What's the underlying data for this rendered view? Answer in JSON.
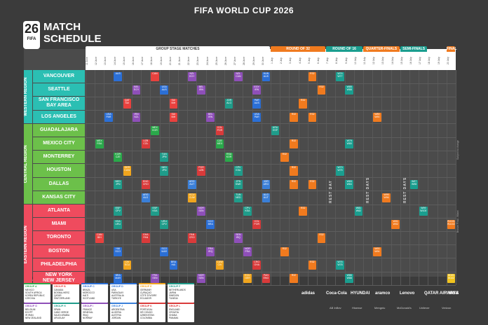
{
  "title": "FIFA WORLD CUP 2026",
  "logo": {
    "big": "26",
    "small": "FIFA"
  },
  "match_title": [
    "MATCH",
    "SCHEDULE"
  ],
  "stages": [
    {
      "label": "GROUP STAGE MATCHES",
      "color": "#ffffff"
    },
    {
      "label": "ROUND OF 32",
      "color": "#f07a1e"
    },
    {
      "label": "ROUND OF 16",
      "color": "#1a9e8f"
    },
    {
      "label": "QUARTER-FINALS",
      "color": "#f07a1e"
    },
    {
      "label": "SEMI-FINALS",
      "color": "#1a9e8f"
    },
    {
      "label": "FINAL",
      "color": "#f07a1e"
    }
  ],
  "regions": [
    {
      "label": "WESTERN REGION",
      "color": "#2bbfb3"
    },
    {
      "label": "CENTRAL REGION",
      "color": "#6cc04a"
    },
    {
      "label": "EASTERN REGION",
      "color": "#ef4b5e"
    }
  ],
  "cities": [
    {
      "name": "VANCOUVER",
      "region": 0
    },
    {
      "name": "SEATTLE",
      "region": 0
    },
    {
      "name": "SAN FRANCISCO\nBAY AREA",
      "region": 0
    },
    {
      "name": "LOS ANGELES",
      "region": 0
    },
    {
      "name": "GUADALAJARA",
      "region": 1
    },
    {
      "name": "MEXICO CITY",
      "region": 1
    },
    {
      "name": "MONTERREY",
      "region": 1
    },
    {
      "name": "HOUSTON",
      "region": 1
    },
    {
      "name": "DALLAS",
      "region": 1
    },
    {
      "name": "KANSAS CITY",
      "region": 1
    },
    {
      "name": "ATLANTA",
      "region": 2
    },
    {
      "name": "MIAMI",
      "region": 2
    },
    {
      "name": "TORONTO",
      "region": 2
    },
    {
      "name": "BOSTON",
      "region": 2
    },
    {
      "name": "PHILADELPHIA",
      "region": 2
    },
    {
      "name": "NEW YORK\nNEW JERSEY",
      "region": 2
    }
  ],
  "rest_days": [
    "REST DAY",
    "REST DAYS",
    "REST DAYS"
  ],
  "matches": [
    {
      "row": 0,
      "col": 3,
      "t": "AUS",
      "c": "#2b6fd6"
    },
    {
      "row": 0,
      "col": 7,
      "t": "CAN",
      "c": "#e8413e"
    },
    {
      "row": 0,
      "col": 11,
      "t": "NZL\nEGY",
      "c": "#8e4fb8"
    },
    {
      "row": 0,
      "col": 16,
      "t": "NZL\nCAN",
      "c": "#8e4fb8"
    },
    {
      "row": 0,
      "col": 19,
      "t": "HUN\nAUS",
      "c": "#2b6fd6"
    },
    {
      "row": 1,
      "col": 5,
      "t": "BEL\nEGY",
      "c": "#8e4fb8"
    },
    {
      "row": 1,
      "col": 8,
      "t": "USA\nAUS",
      "c": "#2b6fd6"
    },
    {
      "row": 1,
      "col": 12,
      "t": "BEL\nIRN",
      "c": "#8e4fb8"
    },
    {
      "row": 1,
      "col": 18,
      "t": "EGY\nIRN",
      "c": "#8e4fb8"
    },
    {
      "row": 2,
      "col": 4,
      "t": "QAT\nSUI",
      "c": "#e8413e"
    },
    {
      "row": 2,
      "col": 9,
      "t": "SUI\nBIH",
      "c": "#e8413e"
    },
    {
      "row": 2,
      "col": 15,
      "t": "JOR\nALG",
      "c": "#1f9c8a"
    },
    {
      "row": 2,
      "col": 18,
      "t": "PAR\nAUS",
      "c": "#2b6fd6"
    },
    {
      "row": 3,
      "col": 2,
      "t": "USA\nPAR",
      "c": "#2b6fd6"
    },
    {
      "row": 3,
      "col": 5,
      "t": "IRN\nNZL",
      "c": "#8e4fb8"
    },
    {
      "row": 3,
      "col": 9,
      "t": "SUI\nBIH",
      "c": "#e8413e"
    },
    {
      "row": 3,
      "col": 13,
      "t": "BEL\nIRN",
      "c": "#8e4fb8"
    },
    {
      "row": 3,
      "col": 18,
      "t": "USA\nPAR",
      "c": "#2b6fd6"
    },
    {
      "row": 4,
      "col": 7,
      "t": "MEX\nKOR",
      "c": "#2aa84a"
    },
    {
      "row": 4,
      "col": 14,
      "t": "COL\nPOR",
      "c": "#d93a3a"
    },
    {
      "row": 4,
      "col": 20,
      "t": "URU\nESP",
      "c": "#1f9c8a"
    },
    {
      "row": 5,
      "col": 1,
      "t": "MEX\nRSA",
      "c": "#2aa84a"
    },
    {
      "row": 5,
      "col": 6,
      "t": "UZB\nCOL",
      "c": "#d93a3a"
    },
    {
      "row": 5,
      "col": 14,
      "t": "CZE\nMEX",
      "c": "#2aa84a"
    },
    {
      "row": 6,
      "col": 3,
      "t": "KOR\nCZE",
      "c": "#2aa84a"
    },
    {
      "row": 6,
      "col": 8,
      "t": "TUN\nJPN",
      "c": "#1f9c8a"
    },
    {
      "row": 6,
      "col": 15,
      "t": "RSA\nKOR",
      "c": "#2aa84a"
    },
    {
      "row": 7,
      "col": 4,
      "t": "GER\nCUW",
      "c": "#f0a51e"
    },
    {
      "row": 7,
      "col": 8,
      "t": "NED\nJPN",
      "c": "#1f9c8a"
    },
    {
      "row": 7,
      "col": 12,
      "t": "POR\nUZB",
      "c": "#d93a3a"
    },
    {
      "row": 7,
      "col": 16,
      "t": "CPV\nKSA",
      "c": "#1f9c8a"
    },
    {
      "row": 8,
      "col": 3,
      "t": "NED\nJPN",
      "c": "#1f9c8a"
    },
    {
      "row": 8,
      "col": 6,
      "t": "ENG\nCRO",
      "c": "#d93a3a"
    },
    {
      "row": 8,
      "col": 11,
      "t": "ARG\nAUT",
      "c": "#3a7fd8"
    },
    {
      "row": 8,
      "col": 16,
      "t": "JPN\nSWE",
      "c": "#1f9c8a"
    },
    {
      "row": 8,
      "col": 19,
      "t": "JOR\nARG",
      "c": "#3a7fd8"
    },
    {
      "row": 9,
      "col": 6,
      "t": "ARG\nALG",
      "c": "#3a7fd8"
    },
    {
      "row": 9,
      "col": 11,
      "t": "ECU\nCUW",
      "c": "#f0a51e"
    },
    {
      "row": 9,
      "col": 16,
      "t": "TUN\nNED",
      "c": "#1f9c8a"
    },
    {
      "row": 9,
      "col": 19,
      "t": "ALG\nAUT",
      "c": "#3a7fd8"
    },
    {
      "row": 10,
      "col": 3,
      "t": "ESP\nCPV",
      "c": "#1f9c8a"
    },
    {
      "row": 10,
      "col": 7,
      "t": "ESP\nKSA",
      "c": "#1f9c8a"
    },
    {
      "row": 10,
      "col": 12,
      "t": "NOR\nSEN",
      "c": "#8e4fb8"
    },
    {
      "row": 10,
      "col": 17,
      "t": "CPV\nKSA",
      "c": "#1f9c8a"
    },
    {
      "row": 11,
      "col": 3,
      "t": "KSA\nURU",
      "c": "#1f9c8a"
    },
    {
      "row": 11,
      "col": 8,
      "t": "URU\nCPV",
      "c": "#1f9c8a"
    },
    {
      "row": 11,
      "col": 13,
      "t": "SCO\nBRA",
      "c": "#2b6fd6"
    },
    {
      "row": 11,
      "col": 18,
      "t": "COL\nPOR",
      "c": "#d93a3a"
    },
    {
      "row": 12,
      "col": 1,
      "t": "CAN\nBIH",
      "c": "#e8413e"
    },
    {
      "row": 12,
      "col": 6,
      "t": "GHA\nPAN",
      "c": "#d93a3a"
    },
    {
      "row": 12,
      "col": 11,
      "t": "PAN\nCRO",
      "c": "#d93a3a"
    },
    {
      "row": 12,
      "col": 16,
      "t": "SEN\nIRQ",
      "c": "#8e4fb8"
    },
    {
      "row": 13,
      "col": 3,
      "t": "HAI\nSCO",
      "c": "#2b6fd6"
    },
    {
      "row": 13,
      "col": 8,
      "t": "SCO\nMAR",
      "c": "#2b6fd6"
    },
    {
      "row": 13,
      "col": 13,
      "t": "FRA\nIRQ",
      "c": "#8e4fb8"
    },
    {
      "row": 13,
      "col": 17,
      "t": "NOR\nFRA",
      "c": "#8e4fb8"
    },
    {
      "row": 14,
      "col": 4,
      "t": "CIV\nECU",
      "c": "#f0a51e"
    },
    {
      "row": 14,
      "col": 9,
      "t": "BRA\nHAI",
      "c": "#2b6fd6"
    },
    {
      "row": 14,
      "col": 14,
      "t": "CUW\nCIV",
      "c": "#f0a51e"
    },
    {
      "row": 14,
      "col": 18,
      "t": "CRO\nGHA",
      "c": "#d93a3a"
    },
    {
      "row": 15,
      "col": 3,
      "t": "BRA\nMAR",
      "c": "#2b6fd6"
    },
    {
      "row": 15,
      "col": 7,
      "t": "FRA\nSEN",
      "c": "#8e4fb8"
    },
    {
      "row": 15,
      "col": 12,
      "t": "NOR\nSEN",
      "c": "#8e4fb8"
    },
    {
      "row": 15,
      "col": 17,
      "t": "ECU\nGER",
      "c": "#f0a51e"
    },
    {
      "row": 15,
      "col": 19,
      "t": "PAN\nENG",
      "c": "#d93a3a"
    },
    {
      "row": 0,
      "col": 24,
      "t": "R32",
      "c": "#f07a1e"
    },
    {
      "row": 1,
      "col": 25,
      "t": "R32",
      "c": "#f07a1e"
    },
    {
      "row": 2,
      "col": 23,
      "t": "R32",
      "c": "#f07a1e"
    },
    {
      "row": 3,
      "col": 22,
      "t": "R32",
      "c": "#f07a1e"
    },
    {
      "row": 3,
      "col": 24,
      "t": "R32",
      "c": "#f07a1e"
    },
    {
      "row": 5,
      "col": 22,
      "t": "R32",
      "c": "#f07a1e"
    },
    {
      "row": 6,
      "col": 21,
      "t": "R32",
      "c": "#f07a1e"
    },
    {
      "row": 7,
      "col": 22,
      "t": "R32",
      "c": "#f07a1e"
    },
    {
      "row": 8,
      "col": 22,
      "t": "R32",
      "c": "#f07a1e"
    },
    {
      "row": 8,
      "col": 24,
      "t": "R32",
      "c": "#f07a1e"
    },
    {
      "row": 10,
      "col": 23,
      "t": "R32",
      "c": "#f07a1e"
    },
    {
      "row": 12,
      "col": 25,
      "t": "R32",
      "c": "#f07a1e"
    },
    {
      "row": 13,
      "col": 21,
      "t": "R32",
      "c": "#f07a1e"
    },
    {
      "row": 14,
      "col": 24,
      "t": "R32",
      "c": "#f07a1e"
    },
    {
      "row": 15,
      "col": 22,
      "t": "R32",
      "c": "#f07a1e"
    },
    {
      "row": 0,
      "col": 27,
      "t": "W74\nW77",
      "c": "#1a9e8f"
    },
    {
      "row": 1,
      "col": 28,
      "t": "W85\nW88",
      "c": "#1a9e8f"
    },
    {
      "row": 5,
      "col": 28,
      "t": "W79\nW80",
      "c": "#1a9e8f"
    },
    {
      "row": 7,
      "col": 27,
      "t": "W73\nW75",
      "c": "#1a9e8f"
    },
    {
      "row": 8,
      "col": 28,
      "t": "W83\nW84",
      "c": "#1a9e8f"
    },
    {
      "row": 10,
      "col": 29,
      "t": "W81\nW82",
      "c": "#1a9e8f"
    },
    {
      "row": 14,
      "col": 27,
      "t": "W76\nW78",
      "c": "#1a9e8f"
    },
    {
      "row": 15,
      "col": 28,
      "t": "W86\nW88",
      "c": "#1a9e8f"
    },
    {
      "row": 3,
      "col": 31,
      "t": "W89\nW90",
      "c": "#f07a1e"
    },
    {
      "row": 9,
      "col": 32,
      "t": "W95\nW96",
      "c": "#f07a1e"
    },
    {
      "row": 11,
      "col": 33,
      "t": "W91\nW92",
      "c": "#f07a1e"
    },
    {
      "row": 13,
      "col": 31,
      "t": "W93\nW94",
      "c": "#f07a1e"
    },
    {
      "row": 8,
      "col": 35,
      "t": "W97\nW98",
      "c": "#1a9e8f"
    },
    {
      "row": 10,
      "col": 36,
      "t": "W99\nW100",
      "c": "#1a9e8f"
    },
    {
      "row": 11,
      "col": 39,
      "t": "RU101\nRU102",
      "c": "#f07a1e"
    },
    {
      "row": 15,
      "col": 39,
      "t": "W101\nW102",
      "c": "#f0c31e"
    }
  ],
  "dates": [
    "11 June",
    "12 June",
    "13 June",
    "14 June",
    "15 June",
    "16 June",
    "17 June",
    "18 June",
    "19 June",
    "20 June",
    "21 June",
    "22 June",
    "23 June",
    "24 June",
    "25 June",
    "26 June",
    "27 June",
    "28 June",
    "29 June",
    "30 June",
    "1 July",
    "2 July",
    "3 July",
    "4 July",
    "5 July",
    "6 July",
    "7 July",
    "8 July",
    "9 July",
    "10 July",
    "11 July",
    "12 July",
    "13 July",
    "14 July",
    "15 July",
    "16 July",
    "17 July",
    "18 July",
    "19 July",
    "20 July"
  ],
  "notes": {
    "times": "All times are Eastern Time (ET).",
    "bronze": "Bronze Final - Miami",
    "subject": "Subject to change"
  },
  "groups": [
    {
      "name": "GROUP A",
      "color": "#2aa84a",
      "teams": [
        "MEXICO",
        "SOUTH AFRICA",
        "KOREA REPUBLIC",
        "CZECHIA"
      ]
    },
    {
      "name": "GROUP B",
      "color": "#e8413e",
      "teams": [
        "CANADA",
        "BOSNIA-HERZ.",
        "QATAR",
        "SWITZERLAND"
      ]
    },
    {
      "name": "GROUP C",
      "color": "#2b6fd6",
      "teams": [
        "BRAZIL",
        "MOROCCO",
        "HAITI",
        "SCOTLAND"
      ]
    },
    {
      "name": "GROUP D",
      "color": "#2b6fd6",
      "teams": [
        "USA",
        "PARAGUAY",
        "AUSTRALIA",
        "TÜRKIYE"
      ]
    },
    {
      "name": "GROUP E",
      "color": "#f0a51e",
      "teams": [
        "GERMANY",
        "CURAÇAO",
        "CÔTE D'IVOIRE",
        "ECUADOR"
      ]
    },
    {
      "name": "GROUP F",
      "color": "#1f9c8a",
      "teams": [
        "NETHERLANDS",
        "JAPAN",
        "SWEDEN",
        "TUNISIA"
      ]
    },
    {
      "name": "GROUP G",
      "color": "#8e4fb8",
      "teams": [
        "BELGIUM",
        "EGYPT",
        "IR IRAN",
        "NEW ZEALAND"
      ]
    },
    {
      "name": "GROUP H",
      "color": "#1f9c8a",
      "teams": [
        "SPAIN",
        "CABO VERDE",
        "SAUDI ARABIA",
        "URUGUAY"
      ]
    },
    {
      "name": "GROUP I",
      "color": "#8e4fb8",
      "teams": [
        "FRANCE",
        "SENEGAL",
        "IRAQ",
        "NORWAY"
      ]
    },
    {
      "name": "GROUP J",
      "color": "#3a7fd8",
      "teams": [
        "ARGENTINA",
        "ALGERIA",
        "AUSTRIA",
        "JORDAN"
      ]
    },
    {
      "name": "GROUP K",
      "color": "#d93a3a",
      "teams": [
        "PORTUGAL",
        "DR CONGO",
        "UZBEKISTAN",
        "COLOMBIA"
      ]
    },
    {
      "name": "GROUP L",
      "color": "#d93a3a",
      "teams": [
        "ENGLAND",
        "CROATIA",
        "GHANA",
        "PANAMA"
      ]
    }
  ],
  "sponsors_row1": [
    "adidas",
    "Coca-Cola",
    "HYUNDAI",
    "aramco",
    "Lenovo",
    "QATAR AIRWAYS",
    "VISA"
  ],
  "sponsors_row2": [
    "AB InBev",
    "Hisense",
    "Mengniu",
    "McDonald's",
    "Unilever",
    "Verizon"
  ]
}
